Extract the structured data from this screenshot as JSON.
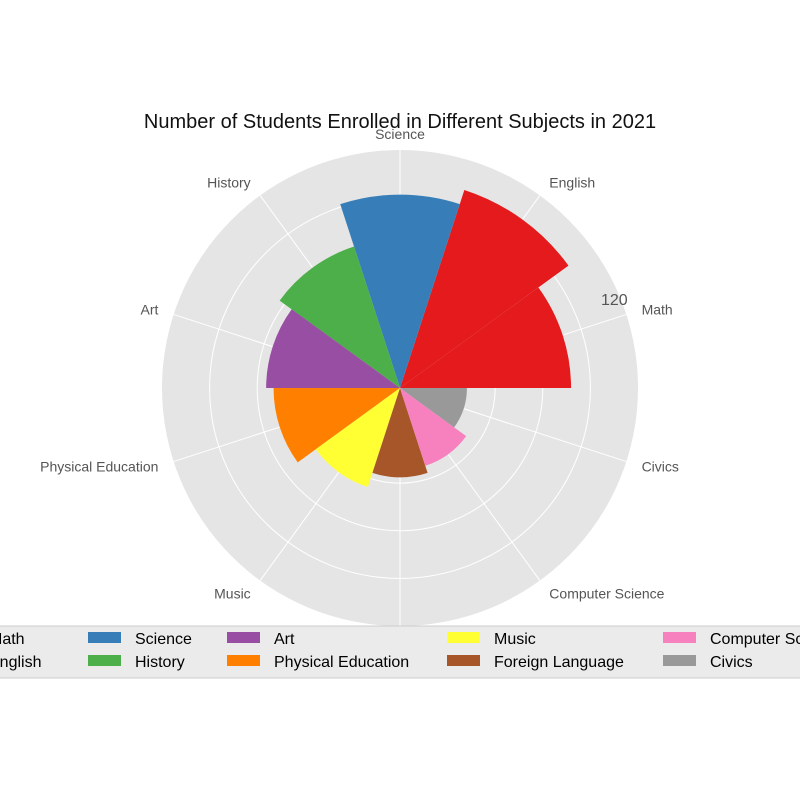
{
  "chart_data": {
    "type": "polar-bar",
    "title": "Number of Students Enrolled in Different Subjects in 2021",
    "categories": [
      "Math",
      "English",
      "Science",
      "History",
      "Art",
      "Physical Education",
      "Music",
      "Foreign Language",
      "Computer Science",
      "Civics"
    ],
    "values": [
      115,
      140,
      130,
      100,
      90,
      85,
      70,
      60,
      55,
      45
    ],
    "colors": [
      "#e41a1c",
      "#e41a1c",
      "#377eb8",
      "#4daf4a",
      "#984ea3",
      "#ff7f00",
      "#ffff33",
      "#a65628",
      "#f781bf",
      "#999999"
    ],
    "radial_ticks": [
      "",
      "",
      "",
      "",
      "120"
    ],
    "rmax": 160,
    "grid": true,
    "legend": {
      "placement": "bottom",
      "columns": 5,
      "entries": [
        "Math",
        "English",
        "Science",
        "History",
        "Art",
        "Physical Education",
        "Music",
        "Foreign Language",
        "Computer Science",
        "Civics"
      ]
    }
  }
}
